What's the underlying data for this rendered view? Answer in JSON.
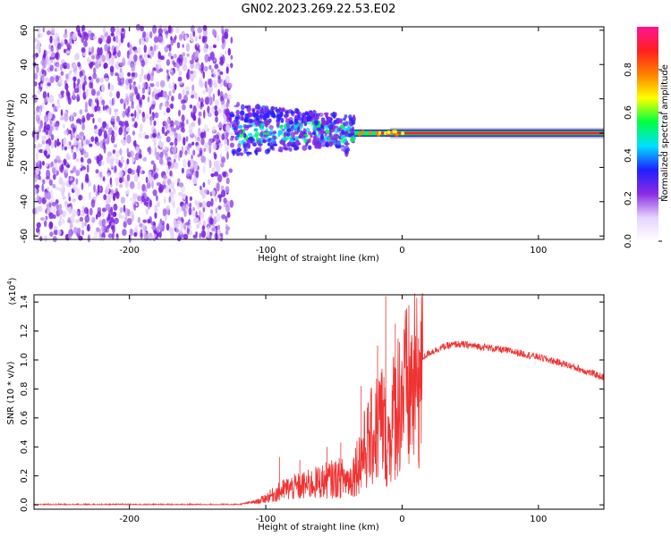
{
  "title": "GN02.2023.269.22.53.E02",
  "chart_data": [
    {
      "type": "heatmap",
      "name": "spectrogram",
      "xlabel": "Height of straight line (km)",
      "ylabel": "Frequency (Hz)",
      "xlim": [
        -270,
        148
      ],
      "ylim": [
        -62,
        62
      ],
      "x_ticks": [
        -200,
        -100,
        0,
        100
      ],
      "x_tick_labels": [
        "-200",
        "-100",
        "0",
        "100"
      ],
      "y_ticks": [
        60,
        40,
        20,
        0,
        -20,
        -40,
        -60
      ],
      "y_tick_labels": [
        "60",
        "40",
        "20",
        "0",
        "-20",
        "-40",
        "-60"
      ],
      "features": {
        "noise_region_x": [
          -270,
          -125
        ],
        "transition_region_x": [
          -125,
          -35
        ],
        "tone_start_x": -35,
        "tone_frequency_hz": 0
      },
      "colorbar": {
        "label": "Normalized spectral amplitude",
        "range": [
          0.0,
          1.0
        ],
        "ticks": [
          0.0,
          0.2,
          0.4,
          0.6,
          0.8
        ],
        "tick_labels": [
          "0.0",
          "0.2",
          "0.4",
          "0.6",
          "0.8"
        ],
        "colors": [
          "#ffffff",
          "#e6d2ff",
          "#8a2be2",
          "#2020ff",
          "#00e0ff",
          "#00ff40",
          "#ffff00",
          "#ff8000",
          "#ff2020",
          "#ff1493"
        ]
      }
    },
    {
      "type": "line",
      "name": "snr",
      "xlabel": "Height of straight line (km)",
      "ylabel": "SNR (10 * v/v)",
      "y_multiplier": "(x10",
      "y_multiplier_exp": "4",
      "y_multiplier_close": ")",
      "xlim": [
        -270,
        148
      ],
      "ylim": [
        -0.03,
        1.45
      ],
      "x_ticks": [
        -200,
        -100,
        0,
        100
      ],
      "x_tick_labels": [
        "-200",
        "-100",
        "0",
        "100"
      ],
      "y_ticks": [
        0.0,
        0.2,
        0.4,
        0.6,
        0.8,
        1.0,
        1.2,
        1.4
      ],
      "y_tick_labels": [
        "0.0",
        "0.2",
        "0.4",
        "0.6",
        "0.8",
        "1.0",
        "1.2",
        "1.4"
      ],
      "color": "#ee3333",
      "envelope_x": [
        -270,
        -120,
        -105,
        -95,
        -85,
        -70,
        -55,
        -45,
        -38,
        -30,
        -22,
        -15,
        -10,
        -5,
        0,
        10,
        20,
        30,
        40,
        60,
        80,
        100,
        120,
        148
      ],
      "envelope_y": [
        0.0,
        0.0,
        0.03,
        0.08,
        0.13,
        0.16,
        0.2,
        0.22,
        0.2,
        0.4,
        0.55,
        0.7,
        0.5,
        0.8,
        0.9,
        0.98,
        1.05,
        1.09,
        1.11,
        1.09,
        1.06,
        1.02,
        0.97,
        0.88
      ],
      "spikes": [
        [
          -90,
          0.33
        ],
        [
          -75,
          0.31
        ],
        [
          -55,
          0.4
        ],
        [
          -45,
          0.43
        ],
        [
          -30,
          0.82
        ],
        [
          -18,
          1.1
        ],
        [
          -12,
          1.44
        ],
        [
          -5,
          1.25
        ],
        [
          5,
          1.24
        ],
        [
          12,
          1.15
        ]
      ]
    }
  ]
}
